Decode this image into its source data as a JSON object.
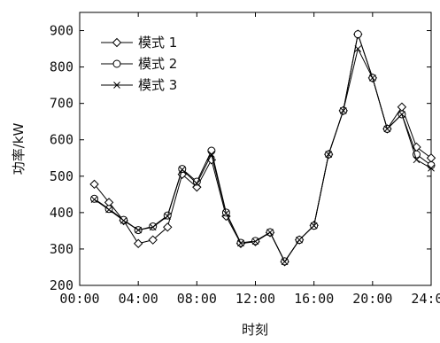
{
  "chart_data": {
    "type": "line",
    "xlabel": "时刻",
    "ylabel": "功率/kW",
    "xlim": [
      0,
      24
    ],
    "ylim": [
      200,
      950
    ],
    "x_ticks": [
      0,
      4,
      8,
      12,
      16,
      20,
      24
    ],
    "x_tick_labels": [
      "00:00",
      "04:00",
      "08:00",
      "12:00",
      "16:00",
      "20:00",
      "24:00"
    ],
    "y_ticks": [
      200,
      300,
      400,
      500,
      600,
      700,
      800,
      900
    ],
    "y_tick_labels": [
      "200",
      "300",
      "400",
      "500",
      "600",
      "700",
      "800",
      "900"
    ],
    "x": [
      1,
      2,
      3,
      4,
      5,
      6,
      7,
      8,
      9,
      10,
      11,
      12,
      13,
      14,
      15,
      16,
      17,
      18,
      19,
      20,
      21,
      22,
      23,
      24
    ],
    "series": [
      {
        "name": "模式 1",
        "marker": "diamond",
        "values": [
          478,
          428,
          378,
          315,
          325,
          360,
          505,
          470,
          545,
          390,
          315,
          320,
          345,
          265,
          325,
          365,
          560,
          680,
          890,
          770,
          630,
          690,
          580,
          550
        ]
      },
      {
        "name": "模式 2",
        "marker": "circle",
        "values": [
          438,
          410,
          380,
          352,
          362,
          392,
          520,
          485,
          570,
          400,
          317,
          322,
          346,
          266,
          325,
          364,
          560,
          680,
          890,
          770,
          630,
          670,
          560,
          530
        ]
      },
      {
        "name": "模式 3",
        "marker": "x",
        "values": [
          436,
          408,
          378,
          352,
          360,
          390,
          518,
          480,
          560,
          398,
          316,
          321,
          346,
          265,
          325,
          364,
          560,
          680,
          850,
          770,
          630,
          670,
          545,
          522
        ]
      }
    ],
    "legend_position": "top-left",
    "grid": false
  }
}
